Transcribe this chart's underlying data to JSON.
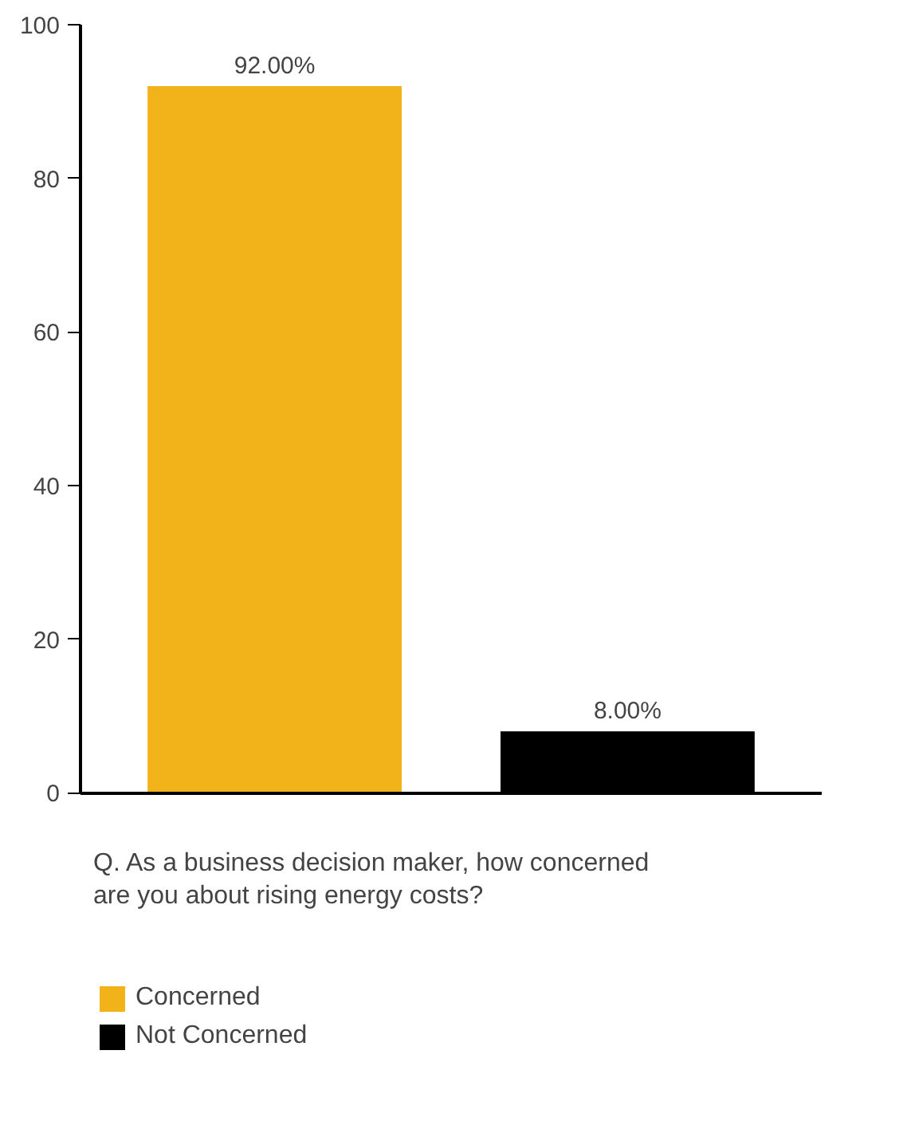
{
  "chart_data": {
    "type": "bar",
    "categories": [
      null,
      null
    ],
    "series": [
      {
        "name": "Concerned",
        "color": "#f2b21a",
        "values": [
          92,
          null
        ],
        "value_labels": [
          "92.00%",
          null
        ]
      },
      {
        "name": "Not Concerned",
        "color": "#000000",
        "values": [
          null,
          8
        ],
        "value_labels": [
          null,
          "8.00%"
        ]
      }
    ],
    "ylim": [
      0,
      100
    ],
    "yticks": [
      0,
      20,
      40,
      60,
      80,
      100
    ],
    "grid": false,
    "legend": "bottom",
    "annotations": [
      "Q. As a business decision maker, how concerned are you about rising energy costs?"
    ]
  }
}
